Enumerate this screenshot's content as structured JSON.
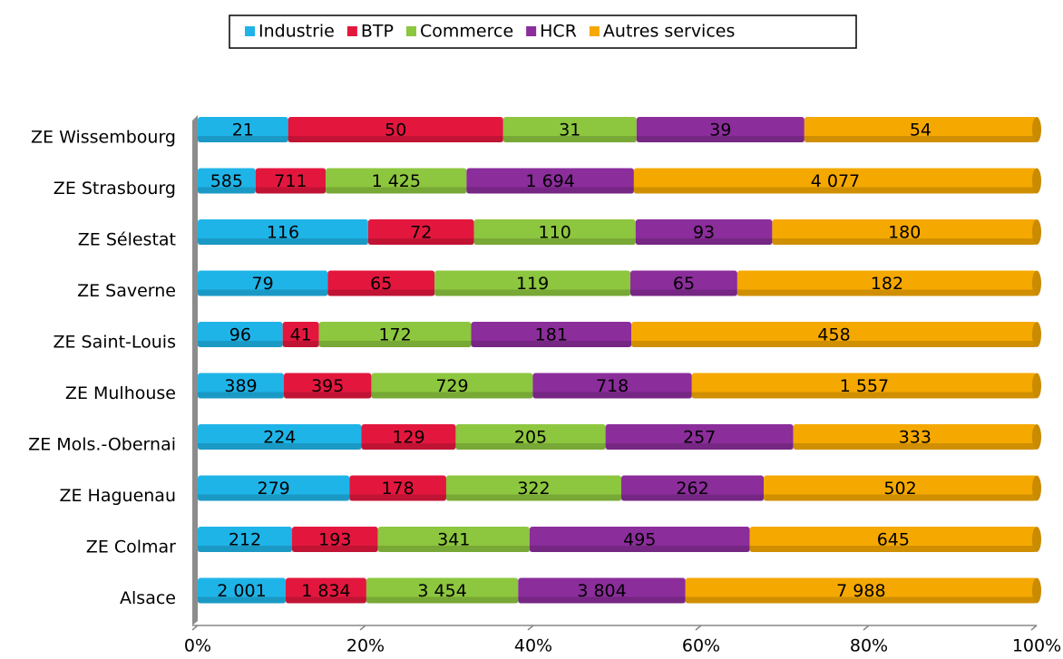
{
  "chart_data": {
    "type": "stacked-bar-percent",
    "orientation": "horizontal",
    "categories": [
      "ZE Wissembourg",
      "ZE Strasbourg",
      "ZE Sélestat",
      "ZE Saverne",
      "ZE Saint-Louis",
      "ZE Mulhouse",
      "ZE Mols.-Obernai",
      "ZE Haguenau",
      "ZE Colmar",
      "Alsace"
    ],
    "series": [
      {
        "name": "Industrie",
        "color": "#1fb4e8",
        "label_color": "#ffffff",
        "values": [
          21,
          585,
          116,
          79,
          96,
          389,
          224,
          279,
          212,
          2001
        ],
        "value_labels": [
          "21",
          "585",
          "116",
          "79",
          "96",
          "389",
          "224",
          "279",
          "212",
          "2 001"
        ]
      },
      {
        "name": "BTP",
        "color": "#e3173e",
        "label_color": "#ffffff",
        "values": [
          50,
          711,
          72,
          65,
          41,
          395,
          129,
          178,
          193,
          1834
        ],
        "value_labels": [
          "50",
          "711",
          "72",
          "65",
          "41",
          "395",
          "129",
          "178",
          "193",
          "1 834"
        ]
      },
      {
        "name": "Commerce",
        "color": "#8dc63f",
        "label_color": "#000000",
        "values": [
          31,
          1425,
          110,
          119,
          172,
          729,
          205,
          322,
          341,
          3454
        ],
        "value_labels": [
          "31",
          "1 425",
          "110",
          "119",
          "172",
          "729",
          "205",
          "322",
          "341",
          "3 454"
        ]
      },
      {
        "name": "HCR",
        "color": "#8b2d9b",
        "label_color": "#ffffff",
        "values": [
          39,
          1694,
          93,
          65,
          181,
          718,
          257,
          262,
          495,
          3804
        ],
        "value_labels": [
          "39",
          "1 694",
          "93",
          "65",
          "181",
          "718",
          "257",
          "262",
          "495",
          "3 804"
        ]
      },
      {
        "name": "Autres services",
        "color": "#f5a800",
        "label_color": "#000000",
        "values": [
          54,
          4077,
          180,
          182,
          458,
          1557,
          333,
          502,
          645,
          7988
        ],
        "value_labels": [
          "54",
          "4 077",
          "180",
          "182",
          "458",
          "1 557",
          "333",
          "502",
          "645",
          "7 988"
        ]
      }
    ],
    "xlim": [
      0,
      100
    ],
    "xticks": [
      {
        "value": 0,
        "label": "0%"
      },
      {
        "value": 20,
        "label": "20%"
      },
      {
        "value": 40,
        "label": "40%"
      },
      {
        "value": 60,
        "label": "60%"
      },
      {
        "value": 80,
        "label": "80%"
      },
      {
        "value": 100,
        "label": "100%"
      }
    ],
    "legend": "top",
    "grid": false
  }
}
